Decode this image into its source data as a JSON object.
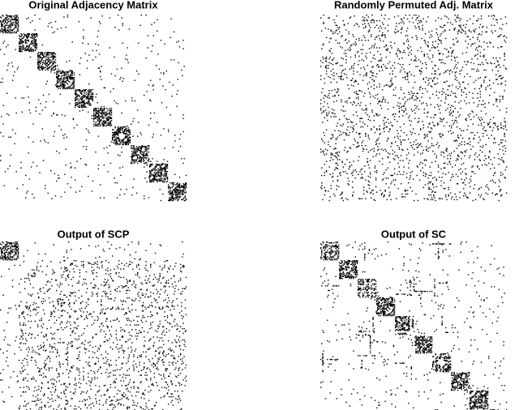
{
  "chart_data": [
    {
      "type": "spy",
      "title": "Original Adjacency Matrix"
    },
    {
      "type": "spy",
      "title": "Randomly Permuted Adj. Matrix"
    },
    {
      "type": "spy",
      "title": "Output of SCP"
    },
    {
      "type": "spy",
      "title": "Output of SC"
    }
  ]
}
